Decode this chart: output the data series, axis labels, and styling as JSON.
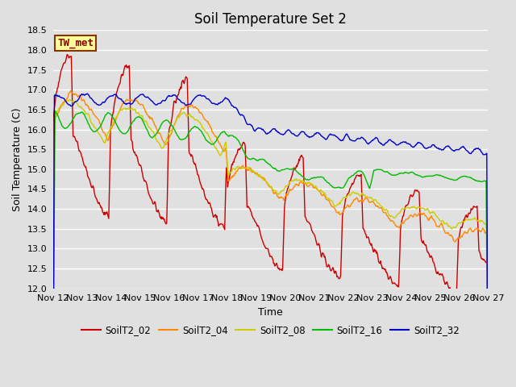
{
  "title": "Soil Temperature Set 2",
  "xlabel": "Time",
  "ylabel": "Soil Temperature (C)",
  "ylim": [
    12.0,
    18.5
  ],
  "xlim": [
    0,
    360
  ],
  "x_tick_labels": [
    "Nov 12",
    "Nov 13",
    "Nov 14",
    "Nov 15",
    "Nov 16",
    "Nov 17",
    "Nov 18",
    "Nov 19",
    "Nov 20",
    "Nov 21",
    "Nov 22",
    "Nov 23",
    "Nov 24",
    "Nov 25",
    "Nov 26",
    "Nov 27"
  ],
  "x_tick_positions": [
    0,
    24,
    48,
    72,
    96,
    120,
    144,
    168,
    192,
    216,
    240,
    264,
    288,
    312,
    336,
    360
  ],
  "colors": {
    "SoilT2_02": "#cc0000",
    "SoilT2_04": "#ff8800",
    "SoilT2_08": "#cccc00",
    "SoilT2_16": "#00bb00",
    "SoilT2_32": "#0000cc"
  },
  "legend_label": "TW_met",
  "legend_box_color": "#ffff99",
  "legend_box_edge": "#883300",
  "background_color": "#e0e0e0",
  "plot_bg_color": "#e0e0e0",
  "grid_color": "#ffffff",
  "title_fontsize": 12,
  "axis_label_fontsize": 9,
  "tick_fontsize": 8
}
